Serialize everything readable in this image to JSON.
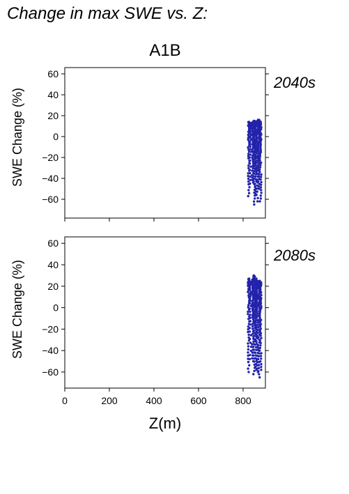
{
  "figure": {
    "title": "Change in max SWE vs. Z:",
    "scenario": "A1B"
  },
  "colors": {
    "points": "#2222aa",
    "period_label": "#2a2aa8",
    "axis": "#000000"
  },
  "chart_data": [
    {
      "type": "scatter",
      "period": "2040s",
      "xlabel": "Z(m)",
      "ylabel": "SWE Change (%)",
      "xlim": [
        0,
        900
      ],
      "ylim": [
        -78,
        66
      ],
      "xticks": [
        0,
        200,
        400,
        600,
        800
      ],
      "yticks": [
        -60,
        -40,
        -20,
        0,
        20,
        40,
        60
      ],
      "grid": false,
      "x_tick_labels_shown": false,
      "point_clusters": [
        {
          "x": 825,
          "y_min": -57,
          "y_max": 14,
          "count": 40
        },
        {
          "x": 833,
          "y_min": -45,
          "y_max": 13,
          "count": 28
        },
        {
          "x": 843,
          "y_min": -44,
          "y_max": 14,
          "count": 40
        },
        {
          "x": 850,
          "y_min": -65,
          "y_max": 15,
          "count": 45
        },
        {
          "x": 857,
          "y_min": -55,
          "y_max": 14,
          "count": 45
        },
        {
          "x": 863,
          "y_min": -62,
          "y_max": 15,
          "count": 40
        },
        {
          "x": 871,
          "y_min": -50,
          "y_max": 16,
          "count": 45
        },
        {
          "x": 878,
          "y_min": -62,
          "y_max": 14,
          "count": 45
        }
      ]
    },
    {
      "type": "scatter",
      "period": "2080s",
      "xlabel": "Z(m)",
      "ylabel": "SWE Change (%)",
      "xlim": [
        0,
        900
      ],
      "ylim": [
        -75,
        66
      ],
      "xticks": [
        0,
        200,
        400,
        600,
        800
      ],
      "yticks": [
        -60,
        -40,
        -20,
        0,
        20,
        40,
        60
      ],
      "grid": false,
      "x_tick_labels_shown": true,
      "point_clusters": [
        {
          "x": 825,
          "y_min": -60,
          "y_max": 27,
          "count": 45
        },
        {
          "x": 833,
          "y_min": -48,
          "y_max": 24,
          "count": 30
        },
        {
          "x": 843,
          "y_min": -50,
          "y_max": 26,
          "count": 45
        },
        {
          "x": 850,
          "y_min": -62,
          "y_max": 30,
          "count": 50
        },
        {
          "x": 857,
          "y_min": -58,
          "y_max": 27,
          "count": 50
        },
        {
          "x": 863,
          "y_min": -60,
          "y_max": 25,
          "count": 45
        },
        {
          "x": 871,
          "y_min": -65,
          "y_max": 25,
          "count": 50
        },
        {
          "x": 878,
          "y_min": -58,
          "y_max": 24,
          "count": 50
        }
      ]
    }
  ]
}
